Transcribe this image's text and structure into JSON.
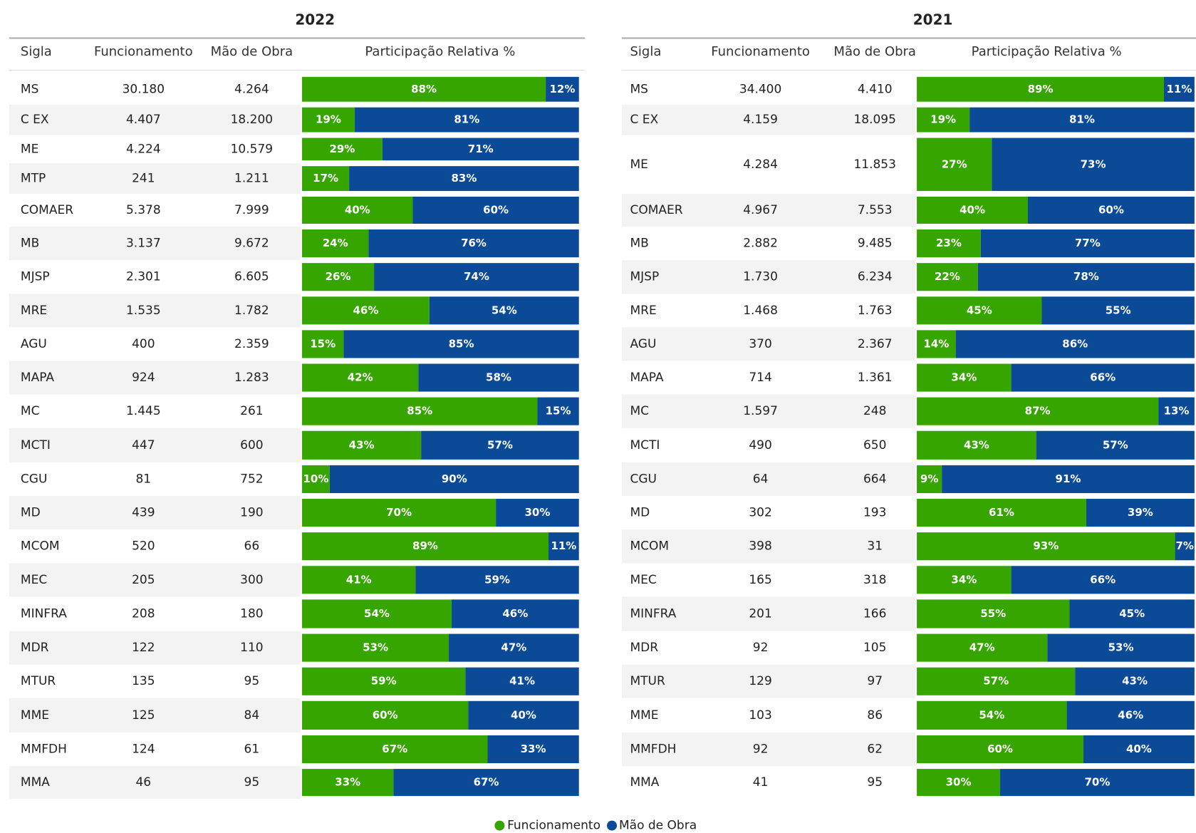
{
  "tables": [
    {
      "title": "2022",
      "columns": [
        "Sigla",
        "Funcionamento",
        "Mão de Obra",
        "Participação Relativa %"
      ],
      "rows": [
        [
          "MS",
          "30.180",
          "4.264",
          {
            "value": 88,
            "label": "88%"
          },
          {
            "value": 12,
            "label": "12%"
          }
        ],
        [
          "C EX",
          "4.407",
          "18.200",
          {
            "value": 19,
            "label": "19%"
          },
          {
            "value": 81,
            "label": "81%"
          }
        ],
        [
          "ME",
          "4.224",
          "10.579",
          {
            "value": 29,
            "label": "29%"
          },
          {
            "value": 71,
            "label": "71%"
          }
        ],
        [
          "MTP",
          "241",
          "1.211",
          {
            "value": 17,
            "label": "17%"
          },
          {
            "value": 83,
            "label": "83%"
          }
        ],
        [
          "COMAER",
          "5.378",
          "7.999",
          {
            "value": 40,
            "label": "40%"
          },
          {
            "value": 60,
            "label": "60%"
          }
        ],
        [
          "MB",
          "3.137",
          "9.672",
          {
            "value": 24,
            "label": "24%"
          },
          {
            "value": 76,
            "label": "76%"
          }
        ],
        [
          "MJSP",
          "2.301",
          "6.605",
          {
            "value": 26,
            "label": "26%"
          },
          {
            "value": 74,
            "label": "74%"
          }
        ],
        [
          "MRE",
          "1.535",
          "1.782",
          {
            "value": 46,
            "label": "46%"
          },
          {
            "value": 54,
            "label": "54%"
          }
        ],
        [
          "AGU",
          "400",
          "2.359",
          {
            "value": 15,
            "label": "15%"
          },
          {
            "value": 85,
            "label": "85%"
          }
        ],
        [
          "MAPA",
          "924",
          "1.283",
          {
            "value": 42,
            "label": "42%"
          },
          {
            "value": 58,
            "label": "58%"
          }
        ],
        [
          "MC",
          "1.445",
          "261",
          {
            "value": 85,
            "label": "85%"
          },
          {
            "value": 15,
            "label": "15%"
          }
        ],
        [
          "MCTI",
          "447",
          "600",
          {
            "value": 43,
            "label": "43%"
          },
          {
            "value": 57,
            "label": "57%"
          }
        ],
        [
          "CGU",
          "81",
          "752",
          {
            "value": 10,
            "label": "10%"
          },
          {
            "value": 90,
            "label": "90%"
          }
        ],
        [
          "MD",
          "439",
          "190",
          {
            "value": 70,
            "label": "70%"
          },
          {
            "value": 30,
            "label": "30%"
          }
        ],
        [
          "MCOM",
          "520",
          "66",
          {
            "value": 89,
            "label": "89%"
          },
          {
            "value": 11,
            "label": "11%"
          }
        ],
        [
          "MEC",
          "205",
          "300",
          {
            "value": 41,
            "label": "41%"
          },
          {
            "value": 59,
            "label": "59%"
          }
        ],
        [
          "MINFRA",
          "208",
          "180",
          {
            "value": 54,
            "label": "54%"
          },
          {
            "value": 46,
            "label": "46%"
          }
        ],
        [
          "MDR",
          "122",
          "110",
          {
            "value": 53,
            "label": "53%"
          },
          {
            "value": 47,
            "label": "47%"
          }
        ],
        [
          "MTUR",
          "135",
          "95",
          {
            "value": 59,
            "label": "59%"
          },
          {
            "value": 41,
            "label": "41%"
          }
        ],
        [
          "MME",
          "125",
          "84",
          {
            "value": 60,
            "label": "60%"
          },
          {
            "value": 40,
            "label": "40%"
          }
        ],
        [
          "MMFDH",
          "124",
          "61",
          {
            "value": 67,
            "label": "67%"
          },
          {
            "value": 33,
            "label": "33%"
          }
        ],
        [
          "MMA",
          "46",
          "95",
          {
            "value": 33,
            "label": "33%"
          },
          {
            "value": 67,
            "label": "67%"
          }
        ]
      ]
    },
    {
      "title": "2021",
      "columns": [
        "Sigla",
        "Funcionamento",
        "Mão de Obra",
        "Participação Relativa %"
      ],
      "rows": [
        [
          "MS",
          "34.400",
          "4.410",
          {
            "value": 89,
            "label": "89%"
          },
          {
            "value": 11,
            "label": "11%"
          }
        ],
        [
          "C EX",
          "4.159",
          "18.095",
          {
            "value": 19,
            "label": "19%"
          },
          {
            "value": 81,
            "label": "81%"
          }
        ],
        [
          "ME",
          "4.284",
          "11.853",
          {
            "value": 27,
            "label": "27%"
          },
          {
            "value": 73,
            "label": "73%"
          }
        ],
        [
          "COMAER",
          "4.967",
          "7.553",
          {
            "value": 40,
            "label": "40%"
          },
          {
            "value": 60,
            "label": "60%"
          }
        ],
        [
          "MB",
          "2.882",
          "9.485",
          {
            "value": 23,
            "label": "23%"
          },
          {
            "value": 77,
            "label": "77%"
          }
        ],
        [
          "MJSP",
          "1.730",
          "6.234",
          {
            "value": 22,
            "label": "22%"
          },
          {
            "value": 78,
            "label": "78%"
          }
        ],
        [
          "MRE",
          "1.468",
          "1.763",
          {
            "value": 45,
            "label": "45%"
          },
          {
            "value": 55,
            "label": "55%"
          }
        ],
        [
          "AGU",
          "370",
          "2.367",
          {
            "value": 14,
            "label": "14%"
          },
          {
            "value": 86,
            "label": "86%"
          }
        ],
        [
          "MAPA",
          "714",
          "1.361",
          {
            "value": 34,
            "label": "34%"
          },
          {
            "value": 66,
            "label": "66%"
          }
        ],
        [
          "MC",
          "1.597",
          "248",
          {
            "value": 87,
            "label": "87%"
          },
          {
            "value": 13,
            "label": "13%"
          }
        ],
        [
          "MCTI",
          "490",
          "650",
          {
            "value": 43,
            "label": "43%"
          },
          {
            "value": 57,
            "label": "57%"
          }
        ],
        [
          "CGU",
          "64",
          "664",
          {
            "value": 9,
            "label": "9%"
          },
          {
            "value": 91,
            "label": "91%"
          }
        ],
        [
          "MD",
          "302",
          "193",
          {
            "value": 61,
            "label": "61%"
          },
          {
            "value": 39,
            "label": "39%"
          }
        ],
        [
          "MCOM",
          "398",
          "31",
          {
            "value": 93,
            "label": "93%"
          },
          {
            "value": 7,
            "label": "7%"
          }
        ],
        [
          "MEC",
          "165",
          "318",
          {
            "value": 34,
            "label": "34%"
          },
          {
            "value": 66,
            "label": "66%"
          }
        ],
        [
          "MINFRA",
          "201",
          "166",
          {
            "value": 55,
            "label": "55%"
          },
          {
            "value": 45,
            "label": "45%"
          }
        ],
        [
          "MDR",
          "92",
          "105",
          {
            "value": 47,
            "label": "47%"
          },
          {
            "value": 53,
            "label": "53%"
          }
        ],
        [
          "MTUR",
          "129",
          "97",
          {
            "value": 57,
            "label": "57%"
          },
          {
            "value": 43,
            "label": "43%"
          }
        ],
        [
          "MME",
          "103",
          "86",
          {
            "value": 54,
            "label": "54%"
          },
          {
            "value": 46,
            "label": "46%"
          }
        ],
        [
          "MMFDH",
          "92",
          "62",
          {
            "value": 60,
            "label": "60%"
          },
          {
            "value": 40,
            "label": "40%"
          }
        ],
        [
          "MMA",
          "41",
          "95",
          {
            "value": 30,
            "label": "30%"
          },
          {
            "value": 70,
            "label": "70%"
          }
        ]
      ]
    }
  ],
  "legend": [
    {
      "name": "Funcionamento",
      "color": "#37a500"
    },
    {
      "name": "Mão de Obra",
      "color": "#0b4a96"
    }
  ]
}
